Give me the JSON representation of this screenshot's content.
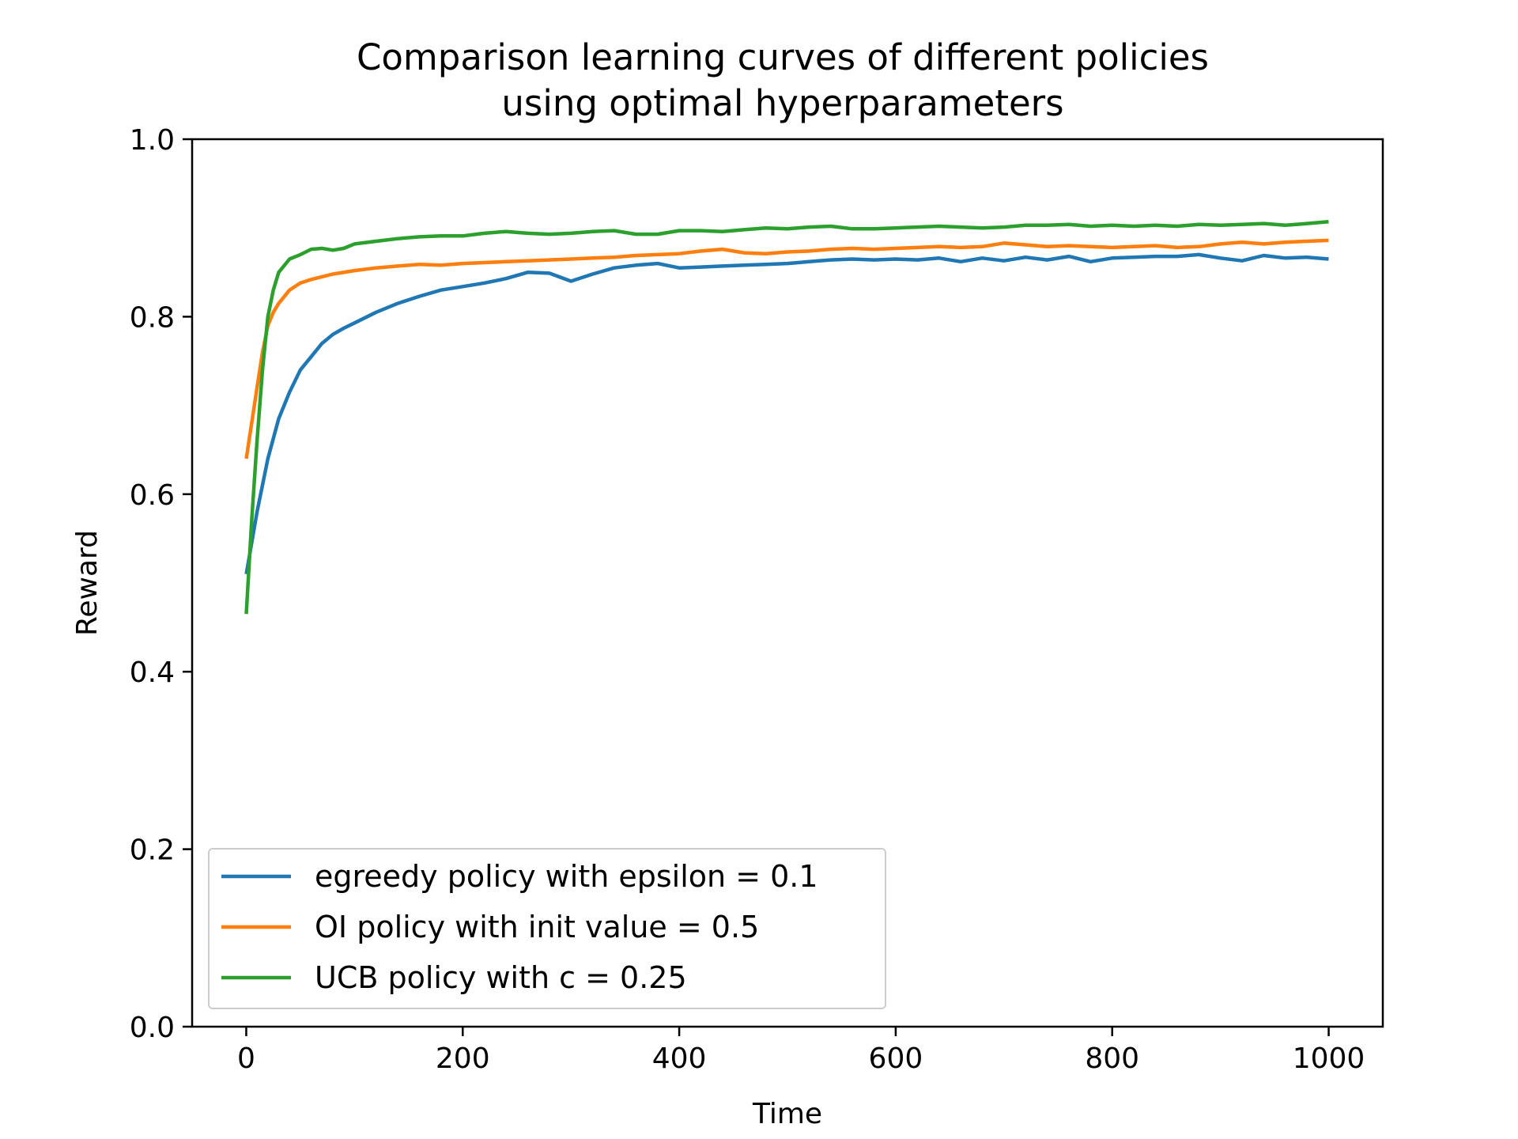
{
  "chart_data": {
    "type": "line",
    "title": [
      "Comparison learning curves of different policies",
      "using optimal hyperparameters"
    ],
    "xlabel": "Time",
    "ylabel": "Reward",
    "xlim": [
      -50,
      1050
    ],
    "ylim": [
      0.0,
      1.0
    ],
    "xticks": [
      0,
      200,
      400,
      600,
      800,
      1000
    ],
    "xtick_labels": [
      "0",
      "200",
      "400",
      "600",
      "800",
      "1000"
    ],
    "yticks": [
      0.0,
      0.2,
      0.4,
      0.6,
      0.8,
      1.0
    ],
    "ytick_labels": [
      "0.0",
      "0.2",
      "0.4",
      "0.6",
      "0.8",
      "1.0"
    ],
    "grid": false,
    "legend_position": "lower-left",
    "series": [
      {
        "name": "egreedy policy with epsilon = 0.1",
        "color": "#1f77b4",
        "x": [
          0,
          10,
          20,
          30,
          40,
          50,
          60,
          70,
          80,
          90,
          100,
          120,
          140,
          160,
          180,
          200,
          220,
          240,
          260,
          280,
          300,
          320,
          340,
          360,
          380,
          400,
          420,
          440,
          460,
          480,
          500,
          520,
          540,
          560,
          580,
          600,
          620,
          640,
          660,
          680,
          700,
          720,
          740,
          760,
          780,
          800,
          820,
          840,
          860,
          880,
          900,
          920,
          940,
          960,
          980,
          1000
        ],
        "y": [
          0.51,
          0.58,
          0.64,
          0.685,
          0.715,
          0.74,
          0.755,
          0.77,
          0.78,
          0.787,
          0.793,
          0.805,
          0.815,
          0.823,
          0.83,
          0.834,
          0.838,
          0.843,
          0.85,
          0.849,
          0.84,
          0.848,
          0.855,
          0.858,
          0.86,
          0.855,
          0.856,
          0.857,
          0.858,
          0.859,
          0.86,
          0.862,
          0.864,
          0.865,
          0.864,
          0.865,
          0.864,
          0.866,
          0.862,
          0.866,
          0.863,
          0.867,
          0.864,
          0.868,
          0.862,
          0.866,
          0.867,
          0.868,
          0.868,
          0.87,
          0.866,
          0.863,
          0.869,
          0.866,
          0.867,
          0.865
        ]
      },
      {
        "name": "OI policy with init value = 0.5",
        "color": "#ff7f0e",
        "x": [
          0,
          5,
          10,
          15,
          20,
          25,
          30,
          40,
          50,
          60,
          80,
          100,
          120,
          140,
          160,
          180,
          200,
          220,
          240,
          260,
          280,
          300,
          320,
          340,
          360,
          380,
          400,
          420,
          440,
          460,
          480,
          500,
          520,
          540,
          560,
          580,
          600,
          620,
          640,
          660,
          680,
          700,
          720,
          740,
          760,
          780,
          800,
          820,
          840,
          860,
          880,
          900,
          920,
          940,
          960,
          980,
          1000
        ],
        "y": [
          0.64,
          0.68,
          0.72,
          0.76,
          0.79,
          0.805,
          0.815,
          0.83,
          0.838,
          0.842,
          0.848,
          0.852,
          0.855,
          0.857,
          0.859,
          0.858,
          0.86,
          0.861,
          0.862,
          0.863,
          0.864,
          0.865,
          0.866,
          0.867,
          0.869,
          0.87,
          0.871,
          0.874,
          0.876,
          0.872,
          0.871,
          0.873,
          0.874,
          0.876,
          0.877,
          0.876,
          0.877,
          0.878,
          0.879,
          0.878,
          0.879,
          0.883,
          0.881,
          0.879,
          0.88,
          0.879,
          0.878,
          0.879,
          0.88,
          0.878,
          0.879,
          0.882,
          0.884,
          0.882,
          0.884,
          0.885,
          0.886
        ]
      },
      {
        "name": "UCB policy with c = 0.25",
        "color": "#2ca02c",
        "x": [
          0,
          5,
          10,
          15,
          20,
          25,
          30,
          40,
          50,
          60,
          70,
          80,
          90,
          100,
          120,
          140,
          160,
          180,
          200,
          220,
          240,
          260,
          280,
          300,
          320,
          340,
          360,
          380,
          400,
          420,
          440,
          460,
          480,
          500,
          520,
          540,
          560,
          580,
          600,
          620,
          640,
          660,
          680,
          700,
          720,
          740,
          760,
          780,
          800,
          820,
          840,
          860,
          880,
          900,
          920,
          940,
          960,
          980,
          1000
        ],
        "y": [
          0.465,
          0.57,
          0.66,
          0.74,
          0.8,
          0.83,
          0.85,
          0.865,
          0.87,
          0.876,
          0.877,
          0.875,
          0.877,
          0.882,
          0.885,
          0.888,
          0.89,
          0.891,
          0.891,
          0.894,
          0.896,
          0.894,
          0.893,
          0.894,
          0.896,
          0.897,
          0.893,
          0.893,
          0.897,
          0.897,
          0.896,
          0.898,
          0.9,
          0.899,
          0.901,
          0.902,
          0.899,
          0.899,
          0.9,
          0.901,
          0.902,
          0.901,
          0.9,
          0.901,
          0.903,
          0.903,
          0.904,
          0.902,
          0.903,
          0.902,
          0.903,
          0.902,
          0.904,
          0.903,
          0.904,
          0.905,
          0.903,
          0.905,
          0.907
        ]
      }
    ]
  }
}
